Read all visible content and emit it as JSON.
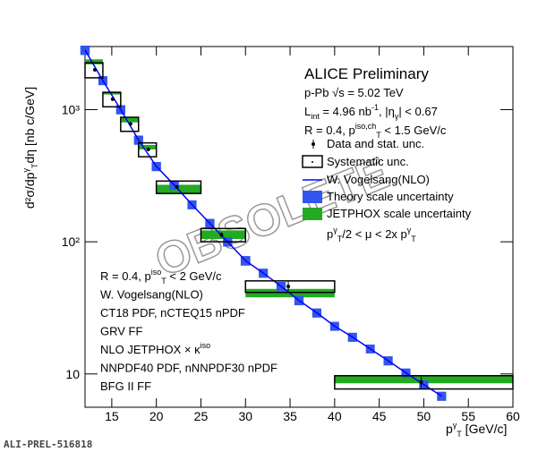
{
  "chart_data": {
    "type": "spectrum",
    "title": "ALICE Preliminary",
    "ylog": true,
    "xlim": [
      12,
      60
    ],
    "ylim": [
      5.6,
      3000
    ],
    "xticks": [
      15,
      20,
      25,
      30,
      35,
      40,
      45,
      50,
      55,
      60
    ],
    "yticks": [
      10,
      {
        "value": 100,
        "label": "10²"
      },
      {
        "value": 1000,
        "label": "10³"
      }
    ],
    "xlabel": [
      "p",
      {
        "text": "γ",
        "shift": "sup"
      },
      {
        "text": "T",
        "shift": "sub"
      },
      " [GeV/c]"
    ],
    "ylabel": [
      "d²σ/dp",
      {
        "text": "γ",
        "shift": "sup"
      },
      {
        "text": "T",
        "shift": "sub"
      },
      "dη [nb c/GeV]"
    ],
    "annotations_right": [
      "p-Pb √s = 5.02 TeV",
      [
        "L",
        {
          "text": "int",
          "shift": "sub"
        },
        " = 4.96 nb",
        {
          "text": "-1",
          "shift": "sup"
        },
        ", |η",
        {
          "text": "γ",
          "shift": "sub"
        },
        "| < 0.67"
      ],
      [
        "R = 0.4, p",
        {
          "text": "iso,ch",
          "shift": "sup"
        },
        {
          "text": "T",
          "shift": "sub"
        },
        " < 1.5 GeV/c"
      ]
    ],
    "legend_note": [
      "p",
      {
        "text": "γ",
        "shift": "sup"
      },
      {
        "text": "T",
        "shift": "sub"
      },
      "/2 < μ < 2x p",
      {
        "text": "γ",
        "shift": "sup"
      },
      {
        "text": "T",
        "shift": "sub"
      }
    ],
    "annotations_left": [
      [
        "R = 0.4, p",
        {
          "text": "iso",
          "shift": "sup"
        },
        {
          "text": "T",
          "shift": "sub"
        },
        " < 2 GeV/c"
      ],
      "W. Vogelsang(NLO)",
      "CT18 PDF, nCTEQ15 nPDF",
      "GRV FF",
      [
        "NLO JETPHOX × κ",
        {
          "text": "iso",
          "shift": "sup"
        }
      ],
      "NNPDF40 PDF, nNNPDF30 nPDF",
      "BFG II FF"
    ],
    "watermark": "OBSOLETE",
    "figure_id": "ALI-PREL-516818",
    "bins": [
      12,
      14,
      16,
      18,
      20,
      25,
      30,
      40,
      60
    ],
    "data": {
      "name": "Data and stat. unc.",
      "color": "#000000",
      "x": [
        13.1,
        15.1,
        17.1,
        19.1,
        22.3,
        27.3,
        34.8,
        49.7
      ],
      "values": [
        2000,
        1200,
        780,
        500,
        260,
        113,
        46,
        8.7
      ],
      "errors": [
        60,
        40,
        25,
        15,
        8,
        5,
        4,
        0.8
      ]
    },
    "systematic": {
      "name": "Systematic unc.",
      "color": "#000000",
      "errors": [
        260,
        150,
        95,
        60,
        28,
        13,
        4.6,
        1.0
      ]
    },
    "theory": {
      "name": "W. Vogelsang(NLO)",
      "color": "#0000ff",
      "x": [
        12,
        14,
        16,
        18,
        20,
        22,
        24,
        26,
        28,
        30,
        32,
        34,
        36,
        38,
        40,
        42,
        44,
        46,
        48,
        50,
        52
      ],
      "values": [
        2818,
        1660,
        1000,
        589,
        372,
        269,
        191,
        138,
        100,
        72,
        58,
        46,
        36,
        29,
        23,
        19,
        15.5,
        12.6,
        10.2,
        8.3,
        6.8
      ]
    },
    "theory_band": {
      "name": "Theory scale uncertainty",
      "color": "#3355ee",
      "errors": [
        230,
        130,
        80,
        47,
        30,
        22,
        15,
        11,
        8,
        6,
        4.6,
        3.7,
        2.9,
        2.3,
        1.8,
        1.5,
        1.2,
        1,
        0.8,
        0.66,
        0.54
      ]
    },
    "jetphox": {
      "name": "JETPHOX scale uncertainty",
      "color": "#22aa22",
      "low": [
        2200,
        1300,
        800,
        500,
        230,
        105,
        38,
        8.5
      ],
      "high": [
        2400,
        1370,
        870,
        540,
        270,
        122,
        44,
        9.7
      ]
    }
  }
}
